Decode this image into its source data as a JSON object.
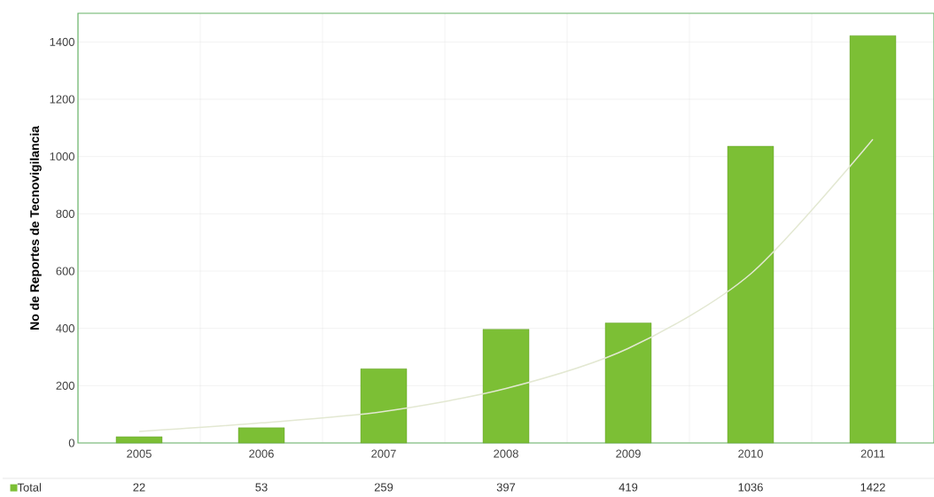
{
  "chart_data": {
    "type": "bar",
    "ylabel": "No de Reportes de Tecnovigilancia",
    "categories": [
      "2005",
      "2006",
      "2007",
      "2008",
      "2009",
      "2010",
      "2011"
    ],
    "series": [
      {
        "name": "Total",
        "color": "#7cbf35",
        "values": [
          22,
          53,
          259,
          397,
          419,
          1036,
          1422
        ],
        "value_labels": [
          "22",
          "53",
          "259",
          "397",
          "419",
          "1036",
          "1422"
        ]
      },
      {
        "type": "line",
        "color": "#e3e8d2",
        "values": [
          40,
          70,
          110,
          190,
          330,
          590,
          1060
        ]
      }
    ],
    "ylim": [
      0,
      1500
    ],
    "yticks": [
      0,
      200,
      400,
      600,
      800,
      1000,
      1200,
      1400
    ],
    "grid": true,
    "legend": "bottom"
  }
}
